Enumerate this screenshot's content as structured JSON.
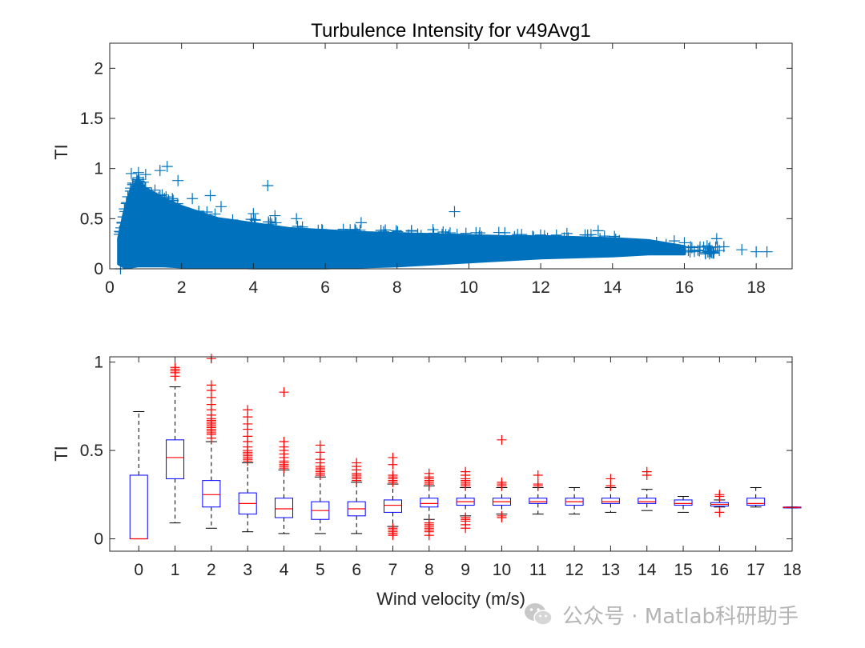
{
  "watermark": {
    "text": "公众号 · Matlab科研助手",
    "icon": "wechat-icon"
  },
  "chart_data": [
    {
      "type": "scatter",
      "title": "Turbulence Intensity for v49Avg1",
      "xlabel": "",
      "ylabel": "TI",
      "xlim": [
        0,
        19
      ],
      "ylim": [
        0,
        2.25
      ],
      "xticks": [
        0,
        2,
        4,
        6,
        8,
        10,
        12,
        14,
        16,
        18
      ],
      "yticks": [
        0,
        0.5,
        1,
        1.5,
        2
      ],
      "ytick_labels": [
        "0",
        "0.5",
        "1",
        "1.5",
        "2"
      ],
      "marker": "+",
      "color": "#0072BD",
      "density_band": {
        "x": [
          0.25,
          0.4,
          0.6,
          0.8,
          1.0,
          1.5,
          2,
          3,
          4,
          5,
          6,
          7,
          8,
          9,
          10,
          11,
          12,
          13,
          14,
          15,
          16
        ],
        "lower": [
          0.05,
          0.02,
          0.02,
          0.03,
          0.03,
          0.03,
          0.02,
          0.02,
          0.01,
          0.01,
          0.01,
          0.02,
          0.03,
          0.05,
          0.07,
          0.09,
          0.11,
          0.12,
          0.13,
          0.15,
          0.15
        ],
        "upper": [
          0.3,
          0.55,
          0.8,
          0.88,
          0.8,
          0.7,
          0.62,
          0.5,
          0.45,
          0.4,
          0.38,
          0.36,
          0.35,
          0.34,
          0.33,
          0.32,
          0.32,
          0.31,
          0.3,
          0.28,
          0.22
        ]
      },
      "outliers": [
        {
          "x": 0.3,
          "y": 0.0
        },
        {
          "x": 0.6,
          "y": 0.95
        },
        {
          "x": 0.8,
          "y": 0.96
        },
        {
          "x": 1.0,
          "y": 0.94
        },
        {
          "x": 1.4,
          "y": 0.98
        },
        {
          "x": 1.6,
          "y": 1.02
        },
        {
          "x": 1.9,
          "y": 0.88
        },
        {
          "x": 2.3,
          "y": 0.7
        },
        {
          "x": 2.8,
          "y": 0.73
        },
        {
          "x": 3.1,
          "y": 0.62
        },
        {
          "x": 4.4,
          "y": 0.83
        },
        {
          "x": 4.0,
          "y": 0.55
        },
        {
          "x": 4.6,
          "y": 0.53
        },
        {
          "x": 5.2,
          "y": 0.5
        },
        {
          "x": 7.0,
          "y": 0.46
        },
        {
          "x": 9.6,
          "y": 0.57
        },
        {
          "x": 9.0,
          "y": 0.39
        },
        {
          "x": 11.0,
          "y": 0.36
        },
        {
          "x": 13.6,
          "y": 0.38
        },
        {
          "x": 13.4,
          "y": 0.34
        },
        {
          "x": 16.0,
          "y": 0.26
        },
        {
          "x": 16.9,
          "y": 0.3
        },
        {
          "x": 17.1,
          "y": 0.22
        },
        {
          "x": 17.6,
          "y": 0.19
        },
        {
          "x": 18.0,
          "y": 0.17
        },
        {
          "x": 18.3,
          "y": 0.17
        }
      ]
    },
    {
      "type": "box",
      "title": "",
      "xlabel": "Wind velocity (m/s)",
      "ylabel": "TI",
      "xlim": [
        -0.8,
        18
      ],
      "ylim": [
        -0.07,
        1.03
      ],
      "yticks": [
        0,
        0.5,
        1
      ],
      "ytick_labels": [
        "0",
        "0.5",
        "1"
      ],
      "categories": [
        "0",
        "1",
        "2",
        "3",
        "4",
        "5",
        "6",
        "7",
        "8",
        "9",
        "10",
        "11",
        "12",
        "13",
        "14",
        "15",
        "16",
        "17",
        "18"
      ],
      "box_color": "#0000FF",
      "median_color": "#FF0000",
      "outlier_color": "#FF0000",
      "boxes": [
        {
          "q1": 0.0,
          "median": 0.0,
          "q3": 0.36,
          "wlo": 0.0,
          "whi": 0.72,
          "outliers": []
        },
        {
          "q1": 0.34,
          "median": 0.46,
          "q3": 0.56,
          "wlo": 0.09,
          "whi": 0.86,
          "outliers": [
            0.92,
            0.94,
            0.95,
            0.96,
            0.97
          ]
        },
        {
          "q1": 0.18,
          "median": 0.25,
          "q3": 0.33,
          "wlo": 0.06,
          "whi": 0.55,
          "outliers": [
            0.57,
            0.59,
            0.6,
            0.61,
            0.62,
            0.63,
            0.64,
            0.65,
            0.66,
            0.67,
            0.68,
            0.7,
            0.73,
            0.76,
            0.8,
            0.84,
            0.87,
            1.02
          ]
        },
        {
          "q1": 0.14,
          "median": 0.2,
          "q3": 0.26,
          "wlo": 0.04,
          "whi": 0.43,
          "outliers": [
            0.44,
            0.45,
            0.46,
            0.47,
            0.48,
            0.49,
            0.5,
            0.52,
            0.55,
            0.58,
            0.62,
            0.65,
            0.69,
            0.73
          ]
        },
        {
          "q1": 0.12,
          "median": 0.17,
          "q3": 0.23,
          "wlo": 0.03,
          "whi": 0.39,
          "outliers": [
            0.4,
            0.41,
            0.42,
            0.43,
            0.44,
            0.46,
            0.48,
            0.5,
            0.52,
            0.55,
            0.83
          ]
        },
        {
          "q1": 0.11,
          "median": 0.16,
          "q3": 0.21,
          "wlo": 0.03,
          "whi": 0.35,
          "outliers": [
            0.36,
            0.37,
            0.38,
            0.39,
            0.4,
            0.41,
            0.43,
            0.45,
            0.49,
            0.53
          ]
        },
        {
          "q1": 0.13,
          "median": 0.17,
          "q3": 0.21,
          "wlo": 0.03,
          "whi": 0.32,
          "outliers": [
            0.33,
            0.34,
            0.35,
            0.36,
            0.37,
            0.39,
            0.41,
            0.43
          ]
        },
        {
          "q1": 0.15,
          "median": 0.19,
          "q3": 0.22,
          "wlo": 0.07,
          "whi": 0.31,
          "outliers": [
            0.02,
            0.03,
            0.04,
            0.05,
            0.06,
            0.32,
            0.33,
            0.34,
            0.35,
            0.36,
            0.42,
            0.46
          ]
        },
        {
          "q1": 0.18,
          "median": 0.2,
          "q3": 0.23,
          "wlo": 0.11,
          "whi": 0.3,
          "outliers": [
            0.02,
            0.04,
            0.05,
            0.06,
            0.07,
            0.08,
            0.09,
            0.31,
            0.32,
            0.33,
            0.34,
            0.35,
            0.37
          ]
        },
        {
          "q1": 0.19,
          "median": 0.21,
          "q3": 0.23,
          "wlo": 0.13,
          "whi": 0.29,
          "outliers": [
            0.06,
            0.08,
            0.1,
            0.11,
            0.12,
            0.3,
            0.31,
            0.32,
            0.33,
            0.34,
            0.36,
            0.38
          ]
        },
        {
          "q1": 0.19,
          "median": 0.21,
          "q3": 0.23,
          "wlo": 0.14,
          "whi": 0.29,
          "outliers": [
            0.12,
            0.13,
            0.3,
            0.31,
            0.32,
            0.56
          ]
        },
        {
          "q1": 0.2,
          "median": 0.21,
          "q3": 0.23,
          "wlo": 0.14,
          "whi": 0.29,
          "outliers": [
            0.3,
            0.31,
            0.36
          ]
        },
        {
          "q1": 0.19,
          "median": 0.21,
          "q3": 0.23,
          "wlo": 0.14,
          "whi": 0.29,
          "outliers": []
        },
        {
          "q1": 0.2,
          "median": 0.21,
          "q3": 0.23,
          "wlo": 0.15,
          "whi": 0.29,
          "outliers": [
            0.3,
            0.34
          ]
        },
        {
          "q1": 0.2,
          "median": 0.21,
          "q3": 0.23,
          "wlo": 0.16,
          "whi": 0.28,
          "outliers": [
            0.36,
            0.38
          ]
        },
        {
          "q1": 0.19,
          "median": 0.2,
          "q3": 0.22,
          "wlo": 0.15,
          "whi": 0.24,
          "outliers": []
        },
        {
          "q1": 0.185,
          "median": 0.195,
          "q3": 0.205,
          "wlo": 0.18,
          "whi": 0.22,
          "outliers": [
            0.15,
            0.24,
            0.25
          ]
        },
        {
          "q1": 0.19,
          "median": 0.2,
          "q3": 0.23,
          "wlo": 0.18,
          "whi": 0.29,
          "outliers": []
        },
        {
          "q1": 0.175,
          "median": 0.178,
          "q3": 0.18,
          "wlo": 0.175,
          "whi": 0.18,
          "outliers": []
        }
      ]
    }
  ]
}
